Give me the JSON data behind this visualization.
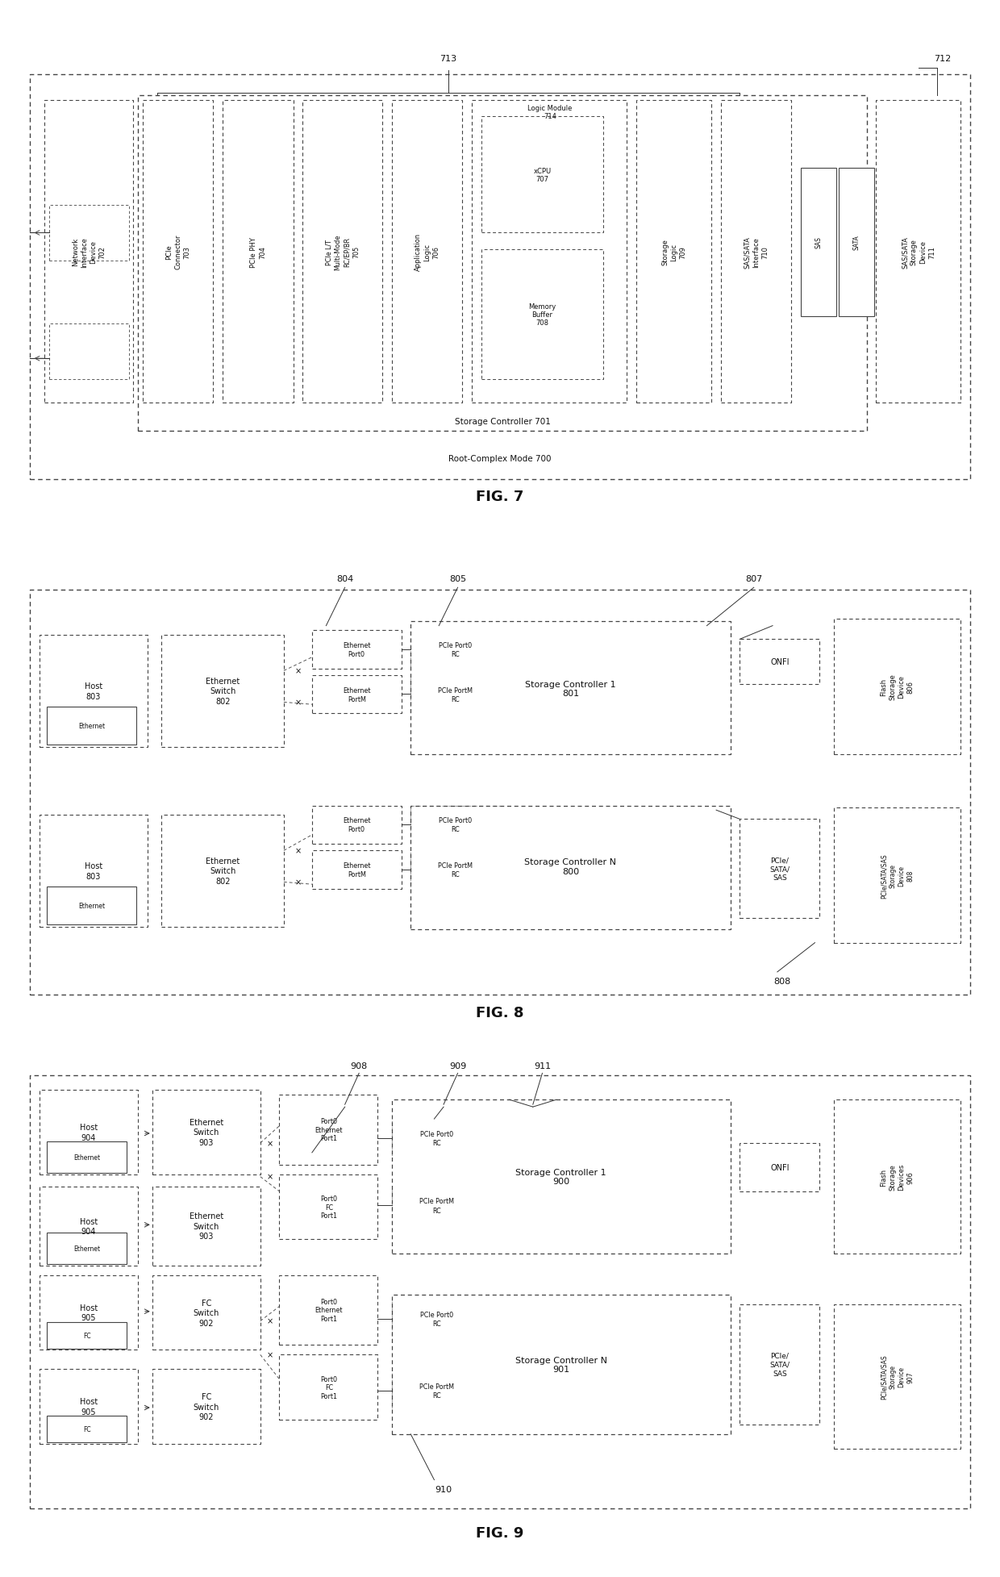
{
  "background": "#ffffff",
  "line_color": "#444444",
  "fig7": {
    "title": "FIG. 7",
    "outer_label": "Root-Complex Mode 700",
    "inner_label": "Storage Controller 701",
    "ref_713": "713",
    "ref_712": "712"
  },
  "fig8": {
    "title": "FIG. 8",
    "ref_804": "804",
    "ref_805": "805",
    "ref_807": "807",
    "ref_808": "808"
  },
  "fig9": {
    "title": "FIG. 9",
    "ref_908": "908",
    "ref_909": "909",
    "ref_910": "910",
    "ref_911": "911"
  }
}
